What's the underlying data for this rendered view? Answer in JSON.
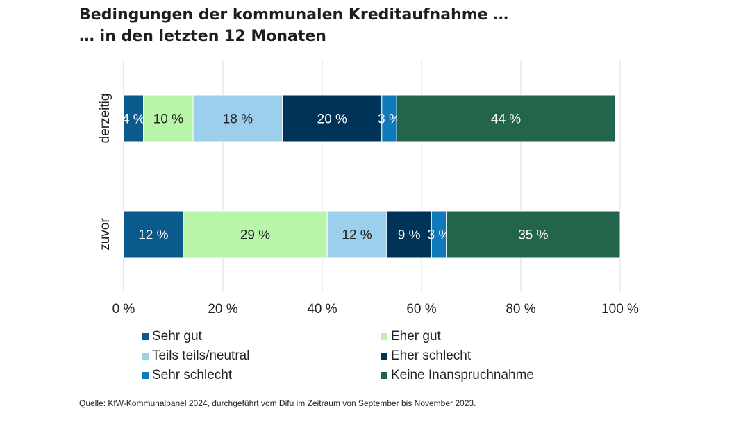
{
  "chart_data": {
    "type": "bar",
    "orientation": "horizontal",
    "stacked": true,
    "title_lines": [
      "Bedingungen der kommunalen Kreditaufnahme …",
      "… in den letzten 12 Monaten"
    ],
    "categories": [
      "derzeitig",
      "zuvor"
    ],
    "series": [
      {
        "name": "Sehr gut",
        "color": "#0b5a8c",
        "values": [
          4,
          12
        ],
        "labels": [
          "4 %",
          "12 %"
        ]
      },
      {
        "name": "Eher gut",
        "color": "#b9f5a8",
        "values": [
          10,
          29
        ],
        "labels": [
          "10 %",
          "29 %"
        ]
      },
      {
        "name": "Teils teils/neutral",
        "color": "#9ccfec",
        "values": [
          18,
          12
        ],
        "labels": [
          "18 %",
          "12 %"
        ]
      },
      {
        "name": "Eher schlecht",
        "color": "#003358",
        "values": [
          20,
          9
        ],
        "labels": [
          "20 %",
          "9 %"
        ]
      },
      {
        "name": "Sehr schlecht",
        "color": "#0f79b9",
        "values": [
          3,
          3
        ],
        "labels": [
          "3 %",
          "3 %"
        ]
      },
      {
        "name": "Keine Inanspruchnahme",
        "color": "#22654a",
        "values": [
          44,
          35
        ],
        "labels": [
          "44 %",
          "35 %"
        ]
      }
    ],
    "xlim": [
      0,
      100
    ],
    "xticks": [
      0,
      20,
      40,
      60,
      80,
      100
    ],
    "xtick_labels": [
      "0 %",
      "20 %",
      "40 %",
      "60 %",
      "80 %",
      "100 %"
    ],
    "grid": true,
    "legend_position": "bottom",
    "source": "Quelle: KfW-Kommunalpanel 2024, durchgeführt vom Difu im Zeitraum von September bis November 2023."
  }
}
